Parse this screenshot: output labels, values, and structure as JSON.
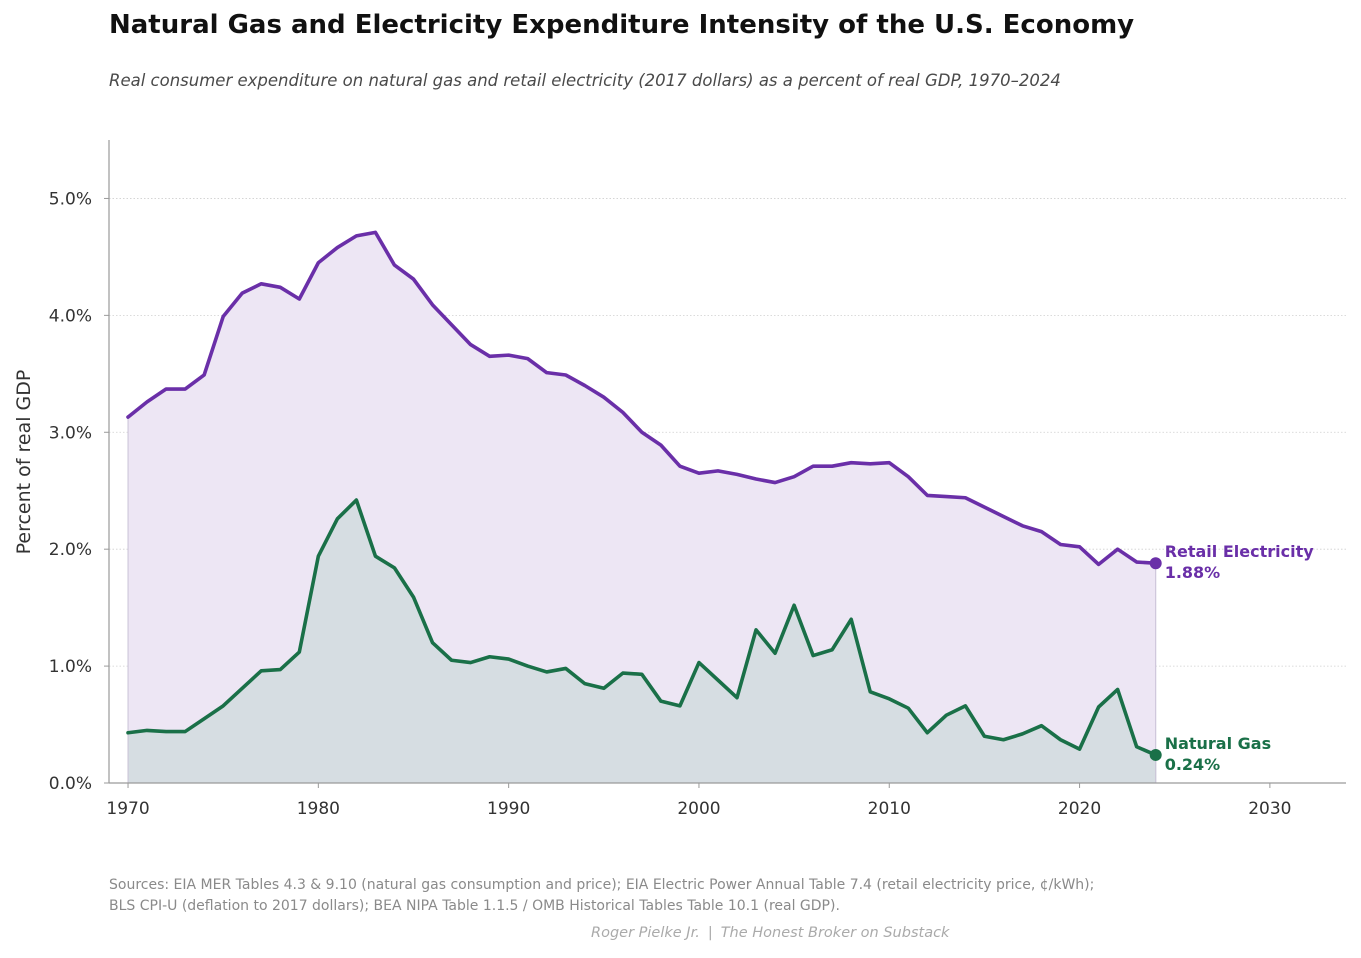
{
  "title": "Natural Gas and Electricity Expenditure Intensity of the U.S. Economy",
  "subtitle": "Real consumer expenditure on natural gas and retail electricity (2017 dollars) as a percent of real GDP, 1970–2024",
  "sources": {
    "line1": "Sources: EIA MER Tables 4.3 & 9.10 (natural gas consumption and price); EIA Electric Power Annual Table 7.4 (retail electricity price, ¢/kWh);",
    "line2": "BLS CPI-U (deflation to 2017 dollars); BEA NIPA Table 1.1.5 / OMB Historical Tables Table 10.1 (real GDP)."
  },
  "credit": {
    "author": "Roger Pielke Jr.",
    "separator": "|",
    "outlet": "The Honest Broker on Substack"
  },
  "chart_data": {
    "type": "area",
    "title": "Natural Gas and Electricity Expenditure Intensity of the U.S. Economy",
    "xlabel": "",
    "ylabel": "Percent of real GDP",
    "xlim": [
      1969,
      2034
    ],
    "ylim": [
      0,
      5.5
    ],
    "x_ticks": [
      1970,
      1980,
      1990,
      2000,
      2010,
      2020,
      2030
    ],
    "y_ticks": [
      0,
      1,
      2,
      3,
      4,
      5
    ],
    "y_tick_labels": [
      "0.0%",
      "1.0%",
      "2.0%",
      "3.0%",
      "4.0%",
      "5.0%"
    ],
    "grid": "horizontal dotted",
    "legend": "none (direct end-of-line labels)",
    "x": [
      1970,
      1971,
      1972,
      1973,
      1974,
      1975,
      1976,
      1977,
      1978,
      1979,
      1980,
      1981,
      1982,
      1983,
      1984,
      1985,
      1986,
      1987,
      1988,
      1989,
      1990,
      1991,
      1992,
      1993,
      1994,
      1995,
      1996,
      1997,
      1998,
      1999,
      2000,
      2001,
      2002,
      2003,
      2004,
      2005,
      2006,
      2007,
      2008,
      2009,
      2010,
      2011,
      2012,
      2013,
      2014,
      2015,
      2016,
      2017,
      2018,
      2019,
      2020,
      2021,
      2022,
      2023,
      2024
    ],
    "series": [
      {
        "name": "Retail Electricity",
        "color": "#6a2fa8",
        "fill": "#ede6f4",
        "end_value_label": "1.88%",
        "values": [
          3.13,
          3.26,
          3.37,
          3.37,
          3.49,
          3.99,
          4.19,
          4.27,
          4.24,
          4.14,
          4.45,
          4.58,
          4.68,
          4.71,
          4.43,
          4.31,
          4.09,
          3.92,
          3.75,
          3.65,
          3.66,
          3.63,
          3.51,
          3.49,
          3.4,
          3.3,
          3.17,
          3.0,
          2.89,
          2.71,
          2.65,
          2.67,
          2.64,
          2.6,
          2.57,
          2.62,
          2.71,
          2.71,
          2.74,
          2.73,
          2.74,
          2.62,
          2.46,
          2.45,
          2.44,
          2.36,
          2.28,
          2.2,
          2.15,
          2.04,
          2.02,
          1.87,
          2.0,
          1.89,
          1.88
        ]
      },
      {
        "name": "Natural Gas",
        "color": "#1a7048",
        "fill": "#d6dde2",
        "end_value_label": "0.24%",
        "values": [
          0.43,
          0.45,
          0.44,
          0.44,
          0.55,
          0.66,
          0.81,
          0.96,
          0.97,
          1.12,
          1.94,
          2.26,
          2.42,
          1.94,
          1.84,
          1.59,
          1.2,
          1.05,
          1.03,
          1.08,
          1.06,
          1.0,
          0.95,
          0.98,
          0.85,
          0.81,
          0.94,
          0.93,
          0.7,
          0.66,
          1.03,
          0.88,
          0.73,
          1.31,
          1.11,
          1.52,
          1.09,
          1.14,
          1.4,
          0.78,
          0.72,
          0.64,
          0.43,
          0.58,
          0.66,
          0.4,
          0.37,
          0.42,
          0.49,
          0.37,
          0.29,
          0.65,
          0.8,
          0.31,
          0.24
        ]
      }
    ]
  }
}
